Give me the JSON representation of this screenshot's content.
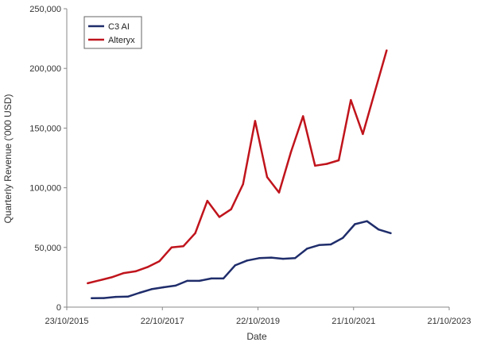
{
  "chart_data": {
    "type": "line",
    "xlabel": "Date",
    "ylabel": "Quarterly Revenue ('000 USD)",
    "xlim": [
      "2015-10-23",
      "2023-10-21"
    ],
    "ylim": [
      0,
      250000
    ],
    "x_ticks": [
      "2015-10-23",
      "2017-10-22",
      "2019-10-22",
      "2021-10-21",
      "2023-10-21"
    ],
    "x_tick_labels": [
      "23/10/2015",
      "22/10/2017",
      "22/10/2019",
      "21/10/2021",
      "21/10/2023"
    ],
    "y_ticks": [
      0,
      50000,
      100000,
      150000,
      200000,
      250000
    ],
    "y_tick_labels": [
      "0",
      "50,000",
      "100,000",
      "150,000",
      "200,000",
      "250,000"
    ],
    "grid": false,
    "legend_position": "top-left",
    "series": [
      {
        "name": "C3 AI",
        "color": "#1f2d6b",
        "points": [
          [
            "2016-04-30",
            7500
          ],
          [
            "2016-07-31",
            7600
          ],
          [
            "2016-10-31",
            8600
          ],
          [
            "2017-01-31",
            8800
          ],
          [
            "2017-04-30",
            12000
          ],
          [
            "2017-07-31",
            15000
          ],
          [
            "2017-10-31",
            16600
          ],
          [
            "2018-01-31",
            18000
          ],
          [
            "2018-04-30",
            22000
          ],
          [
            "2018-07-31",
            22000
          ],
          [
            "2018-10-31",
            24000
          ],
          [
            "2019-01-31",
            24000
          ],
          [
            "2019-04-30",
            35000
          ],
          [
            "2019-07-31",
            39000
          ],
          [
            "2019-10-31",
            41000
          ],
          [
            "2020-01-31",
            41500
          ],
          [
            "2020-04-30",
            40500
          ],
          [
            "2020-07-31",
            41000
          ],
          [
            "2020-10-31",
            49000
          ],
          [
            "2021-01-31",
            52000
          ],
          [
            "2021-04-30",
            52500
          ],
          [
            "2021-07-31",
            58000
          ],
          [
            "2021-10-31",
            69500
          ],
          [
            "2022-01-31",
            72000
          ],
          [
            "2022-04-30",
            65000
          ],
          [
            "2022-07-31",
            62000
          ]
        ]
      },
      {
        "name": "Alteryx",
        "color": "#c0141c",
        "points": [
          [
            "2016-03-31",
            20000
          ],
          [
            "2016-06-30",
            22500
          ],
          [
            "2016-09-30",
            25000
          ],
          [
            "2016-12-31",
            28500
          ],
          [
            "2017-03-31",
            30000
          ],
          [
            "2017-06-30",
            33500
          ],
          [
            "2017-09-30",
            38500
          ],
          [
            "2017-12-31",
            50000
          ],
          [
            "2018-03-31",
            51000
          ],
          [
            "2018-06-30",
            62000
          ],
          [
            "2018-09-30",
            89000
          ],
          [
            "2018-12-31",
            75500
          ],
          [
            "2019-03-31",
            82000
          ],
          [
            "2019-06-30",
            103000
          ],
          [
            "2019-09-30",
            156000
          ],
          [
            "2019-12-31",
            109000
          ],
          [
            "2020-03-31",
            96000
          ],
          [
            "2020-06-30",
            130000
          ],
          [
            "2020-09-30",
            160000
          ],
          [
            "2020-12-31",
            118500
          ],
          [
            "2021-03-31",
            120000
          ],
          [
            "2021-06-30",
            123000
          ],
          [
            "2021-09-30",
            173500
          ],
          [
            "2021-12-31",
            145000
          ],
          [
            "2022-03-31",
            180000
          ],
          [
            "2022-06-30",
            215000
          ]
        ]
      }
    ]
  }
}
